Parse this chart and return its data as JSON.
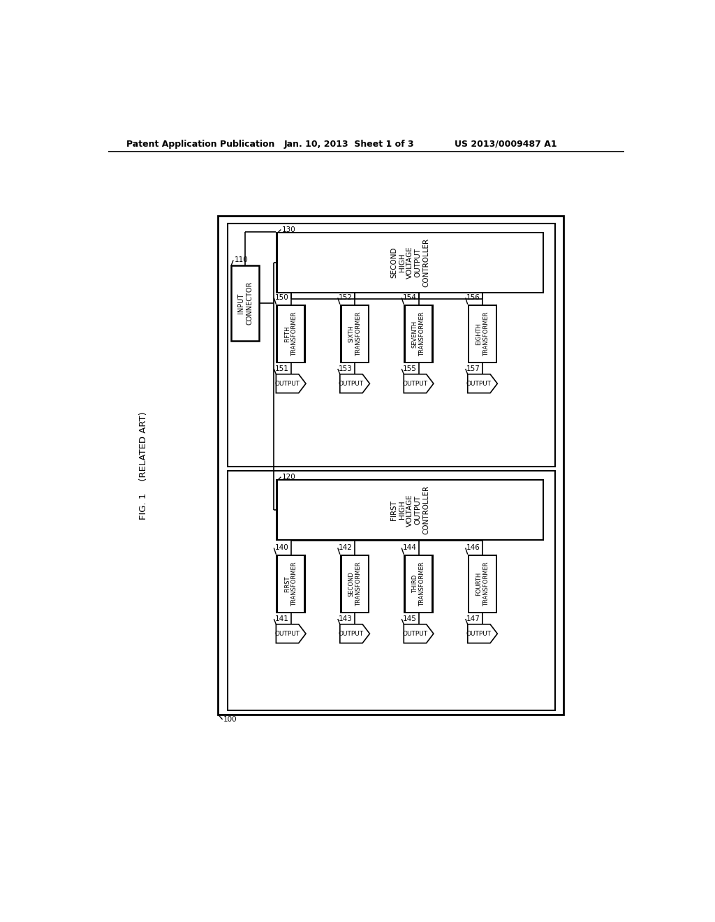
{
  "title_left": "Patent Application Publication",
  "title_mid": "Jan. 10, 2013  Sheet 1 of 3",
  "title_right": "US 2013/0009487 A1",
  "fig_label": "FIG. 1    (RELATED ART)",
  "bg_color": "#ffffff",
  "text_color": "#000000"
}
